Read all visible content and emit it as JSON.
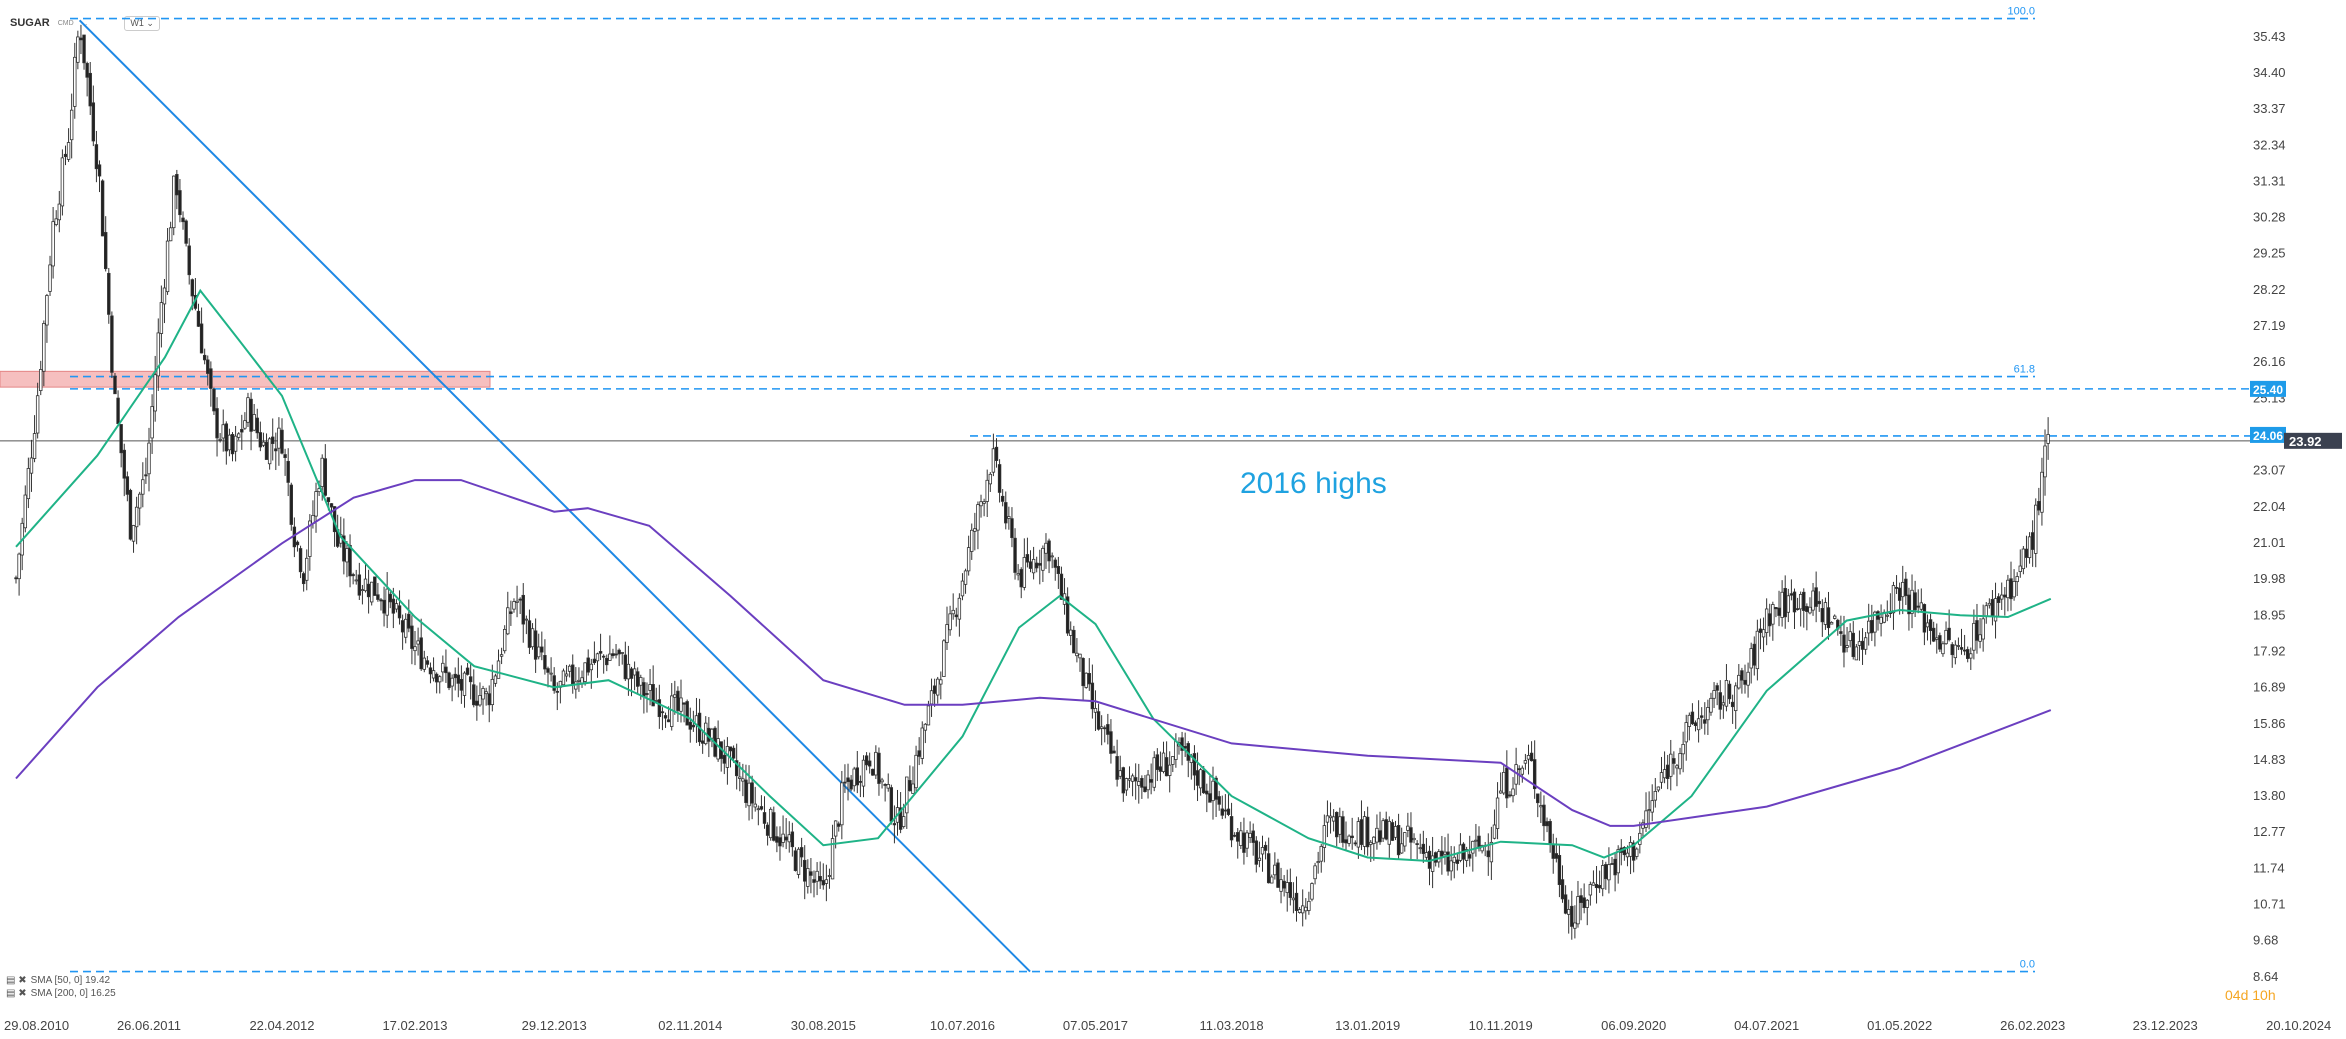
{
  "header": {
    "symbol": "SUGAR",
    "exchange": "CMD",
    "caret": "⌄",
    "timeframe": "W1"
  },
  "colors": {
    "price_candle_up": "#ffffff",
    "price_candle_down": "#222222",
    "sma50": "#1fb387",
    "sma200": "#6b3fc0",
    "trendline": "#1e88e5",
    "fib_line": "#2196f3",
    "resistance_zone": "#f5b5b5",
    "current_price_bg": "#3b4150",
    "level_badge_bg": "#1e9be9",
    "annotation": "#1fa2e0",
    "timer": "#f5a623"
  },
  "annotation": {
    "text": "2016 highs"
  },
  "price_labels": {
    "level_24": "24.06",
    "level_25": "25.40",
    "current": "23.92"
  },
  "fib_labels": {
    "f100": "100.0",
    "f618": "61.8",
    "f0": "0.0"
  },
  "indicators": [
    {
      "icons": "▤ ✖",
      "text": "SMA [50, 0] 19.42"
    },
    {
      "icons": "▤ ✖",
      "text": "SMA [200, 0] 16.25"
    }
  ],
  "timer": {
    "days": "04",
    "d_unit": "d",
    "hours": "10",
    "h_unit": "h"
  },
  "chart_data": {
    "type": "candlestick",
    "title": "SUGAR",
    "timeframe": "weekly",
    "y_ticks": [
      "35.43",
      "34.40",
      "33.37",
      "32.34",
      "31.31",
      "30.28",
      "29.25",
      "28.22",
      "27.19",
      "26.16",
      "25.13",
      "24.10",
      "23.07",
      "22.04",
      "21.01",
      "19.98",
      "18.95",
      "17.92",
      "16.89",
      "15.86",
      "14.83",
      "13.80",
      "12.77",
      "11.74",
      "10.71",
      "9.68",
      "8.64"
    ],
    "x_ticks": [
      "29.08.2010",
      "26.06.2011",
      "22.04.2012",
      "17.02.2013",
      "29.12.2013",
      "02.11.2014",
      "30.08.2015",
      "10.07.2016",
      "07.05.2017",
      "11.03.2018",
      "13.01.2019",
      "10.11.2019",
      "06.09.2020",
      "04.07.2021",
      "01.05.2022",
      "26.02.2023",
      "23.12.2023",
      "20.10.2024"
    ],
    "ylim": [
      8.64,
      35.95
    ],
    "close_path": [
      [
        "2010-08-29",
        20.0
      ],
      [
        "2010-10-15",
        25.0
      ],
      [
        "2010-11-20",
        30.0
      ],
      [
        "2010-12-25",
        32.5
      ],
      [
        "2011-01-20",
        35.9
      ],
      [
        "2011-03-05",
        31.5
      ],
      [
        "2011-04-10",
        25.0
      ],
      [
        "2011-05-15",
        21.5
      ],
      [
        "2011-06-20",
        23.0
      ],
      [
        "2011-07-25",
        28.0
      ],
      [
        "2011-08-25",
        31.5
      ],
      [
        "2011-09-20",
        29.0
      ],
      [
        "2011-10-20",
        27.0
      ],
      [
        "2011-11-20",
        24.5
      ],
      [
        "2012-01-01",
        23.5
      ],
      [
        "2012-02-05",
        24.8
      ],
      [
        "2012-03-10",
        23.8
      ],
      [
        "2012-04-22",
        24.0
      ],
      [
        "2012-05-20",
        21.3
      ],
      [
        "2012-06-10",
        20.2
      ],
      [
        "2012-07-20",
        23.3
      ],
      [
        "2012-08-25",
        21.0
      ],
      [
        "2012-10-10",
        20.0
      ],
      [
        "2012-12-01",
        19.6
      ],
      [
        "2013-02-17",
        18.0
      ],
      [
        "2013-05-15",
        17.0
      ],
      [
        "2013-08-01",
        16.6
      ],
      [
        "2013-10-01",
        19.5
      ],
      [
        "2013-12-29",
        16.7
      ],
      [
        "2014-03-10",
        17.5
      ],
      [
        "2014-05-15",
        17.9
      ],
      [
        "2014-07-15",
        16.8
      ],
      [
        "2014-11-02",
        16.0
      ],
      [
        "2015-01-15",
        15.0
      ],
      [
        "2015-03-15",
        13.8
      ],
      [
        "2015-05-15",
        12.8
      ],
      [
        "2015-08-30",
        11.0
      ],
      [
        "2015-10-15",
        14.0
      ],
      [
        "2015-12-15",
        15.0
      ],
      [
        "2016-02-15",
        13.0
      ],
      [
        "2016-05-01",
        16.5
      ],
      [
        "2016-07-10",
        20.0
      ],
      [
        "2016-09-15",
        23.5
      ],
      [
        "2016-11-15",
        20.0
      ],
      [
        "2017-01-20",
        21.0
      ],
      [
        "2017-03-20",
        18.0
      ],
      [
        "2017-05-07",
        16.0
      ],
      [
        "2017-07-15",
        14.0
      ],
      [
        "2017-09-15",
        14.5
      ],
      [
        "2017-11-15",
        15.0
      ],
      [
        "2018-01-20",
        14.0
      ],
      [
        "2018-03-11",
        13.0
      ],
      [
        "2018-05-15",
        12.0
      ],
      [
        "2018-08-20",
        10.7
      ],
      [
        "2018-10-15",
        13.0
      ],
      [
        "2019-01-13",
        12.8
      ],
      [
        "2019-04-15",
        12.5
      ],
      [
        "2019-07-15",
        11.8
      ],
      [
        "2019-10-15",
        12.5
      ],
      [
        "2019-11-10",
        14.0
      ],
      [
        "2020-01-15",
        14.8
      ],
      [
        "2020-02-20",
        13.0
      ],
      [
        "2020-04-20",
        10.2
      ],
      [
        "2020-06-15",
        11.5
      ],
      [
        "2020-09-06",
        12.3
      ],
      [
        "2020-11-15",
        14.5
      ],
      [
        "2021-01-15",
        15.8
      ],
      [
        "2021-03-15",
        16.5
      ],
      [
        "2021-05-15",
        17.0
      ],
      [
        "2021-07-04",
        19.0
      ],
      [
        "2021-09-15",
        19.5
      ],
      [
        "2021-11-15",
        19.0
      ],
      [
        "2022-01-15",
        18.0
      ],
      [
        "2022-03-15",
        19.0
      ],
      [
        "2022-05-01",
        19.8
      ],
      [
        "2022-07-15",
        18.5
      ],
      [
        "2022-09-15",
        17.8
      ],
      [
        "2022-11-15",
        19.0
      ],
      [
        "2022-12-20",
        19.6
      ],
      [
        "2023-01-20",
        20.0
      ],
      [
        "2023-02-26",
        21.2
      ],
      [
        "2023-03-20",
        22.8
      ],
      [
        "2023-04-01",
        24.0
      ],
      [
        "2023-04-08",
        23.92
      ]
    ],
    "series": [
      {
        "name": "SMA [50, 0]",
        "last": 19.42,
        "points": [
          [
            "2010-08-29",
            20.9
          ],
          [
            "2011-03-01",
            23.5
          ],
          [
            "2011-08-01",
            26.3
          ],
          [
            "2011-10-20",
            28.2
          ],
          [
            "2012-01-15",
            26.8
          ],
          [
            "2012-04-22",
            25.2
          ],
          [
            "2012-09-01",
            21.2
          ],
          [
            "2013-02-17",
            18.9
          ],
          [
            "2013-07-01",
            17.5
          ],
          [
            "2013-12-29",
            16.9
          ],
          [
            "2014-05-01",
            17.1
          ],
          [
            "2014-11-02",
            16.0
          ],
          [
            "2015-05-01",
            13.8
          ],
          [
            "2015-08-30",
            12.4
          ],
          [
            "2016-01-01",
            12.6
          ],
          [
            "2016-07-10",
            15.5
          ],
          [
            "2016-11-15",
            18.6
          ],
          [
            "2017-02-15",
            19.5
          ],
          [
            "2017-05-07",
            18.7
          ],
          [
            "2017-09-15",
            16.0
          ],
          [
            "2018-03-11",
            13.8
          ],
          [
            "2018-09-01",
            12.6
          ],
          [
            "2019-01-13",
            12.05
          ],
          [
            "2019-06-01",
            11.95
          ],
          [
            "2019-11-10",
            12.5
          ],
          [
            "2020-04-20",
            12.4
          ],
          [
            "2020-07-01",
            12.05
          ],
          [
            "2020-09-06",
            12.4
          ],
          [
            "2021-01-15",
            13.8
          ],
          [
            "2021-07-04",
            16.8
          ],
          [
            "2022-01-01",
            18.8
          ],
          [
            "2022-05-01",
            19.1
          ],
          [
            "2022-09-15",
            18.95
          ],
          [
            "2023-01-01",
            18.9
          ],
          [
            "2023-04-08",
            19.42
          ]
        ]
      },
      {
        "name": "SMA [200, 0]",
        "last": 16.25,
        "points": [
          [
            "2010-08-29",
            14.3
          ],
          [
            "2011-03-01",
            16.9
          ],
          [
            "2011-09-01",
            18.9
          ],
          [
            "2012-04-22",
            21.0
          ],
          [
            "2012-10-01",
            22.3
          ],
          [
            "2013-02-17",
            22.8
          ],
          [
            "2013-06-01",
            22.8
          ],
          [
            "2013-12-29",
            21.9
          ],
          [
            "2014-03-15",
            22.0
          ],
          [
            "2014-08-01",
            21.5
          ],
          [
            "2015-02-01",
            19.5
          ],
          [
            "2015-08-30",
            17.1
          ],
          [
            "2016-03-01",
            16.4
          ],
          [
            "2016-07-10",
            16.4
          ],
          [
            "2017-01-01",
            16.6
          ],
          [
            "2017-05-07",
            16.5
          ],
          [
            "2018-03-11",
            15.3
          ],
          [
            "2019-01-13",
            14.95
          ],
          [
            "2019-11-10",
            14.75
          ],
          [
            "2020-04-20",
            13.4
          ],
          [
            "2020-07-15",
            12.95
          ],
          [
            "2020-09-06",
            12.95
          ],
          [
            "2021-07-04",
            13.5
          ],
          [
            "2022-05-01",
            14.6
          ],
          [
            "2023-04-08",
            16.25
          ]
        ]
      }
    ],
    "horizontal_levels": [
      {
        "label": "100.0",
        "value": 35.95,
        "style": "dashed"
      },
      {
        "label": "61.8",
        "value": 25.75,
        "style": "dashed"
      },
      {
        "label": "25.40",
        "value": 25.4,
        "style": "dashed"
      },
      {
        "label": "24.06",
        "value": 24.06,
        "style": "dashed"
      },
      {
        "label": "23.92",
        "value": 23.92,
        "style": "solid"
      },
      {
        "label": "0.0",
        "value": 8.8,
        "style": "dashed"
      }
    ],
    "resistance_zone": [
      25.45,
      25.9
    ],
    "trendline": [
      [
        "2011-01-20",
        35.9
      ],
      [
        "2016-12-10",
        8.8
      ]
    ],
    "grid": false
  }
}
